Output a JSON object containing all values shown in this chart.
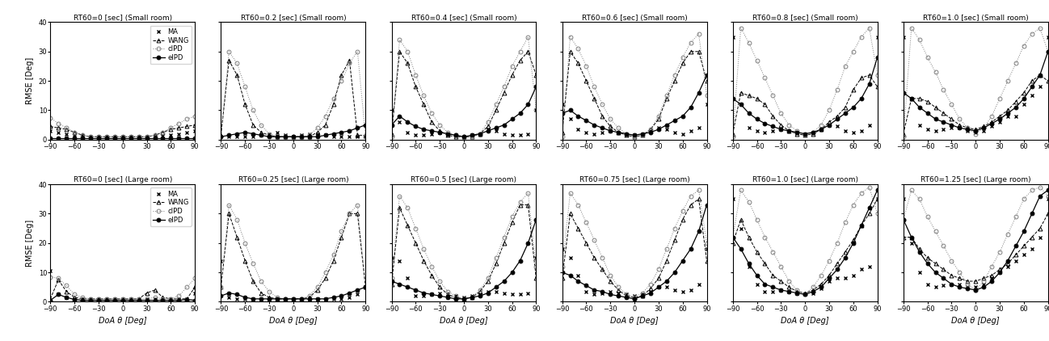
{
  "theta": [
    -90,
    -80,
    -70,
    -60,
    -50,
    -40,
    -30,
    -20,
    -10,
    0,
    10,
    20,
    30,
    40,
    50,
    60,
    70,
    80,
    90
  ],
  "row1_titles": [
    "RT60=0 [sec] (Small room)",
    "RT60=0.2 [sec] (Small room)",
    "RT60=0.4 [sec] (Small room)",
    "RT60=0.6 [sec] (Small room)",
    "RT60=0.8 [sec] (Small room)",
    "RT60=1.0 [sec] (Small room)"
  ],
  "row2_titles": [
    "RT60=0 [sec] (Large room)",
    "RT60=0.25 [sec] (Large room)",
    "RT60=0.5 [sec] (Large room)",
    "RT60=0.75 [sec] (Large room)",
    "RT60=1.0 [sec] (Large room)",
    "RT60=1.25 [sec] (Large room)"
  ],
  "small_room": {
    "MA": [
      [
        3.0,
        2.5,
        2.0,
        1.5,
        1.2,
        1.0,
        1.0,
        1.0,
        1.0,
        1.0,
        1.0,
        1.0,
        1.0,
        1.0,
        1.2,
        1.5,
        2.0,
        2.5,
        3.0
      ],
      [
        1.0,
        1.0,
        1.0,
        1.0,
        1.0,
        1.5,
        2.0,
        2.5,
        1.5,
        1.0,
        1.5,
        2.0,
        2.0,
        1.5,
        1.0,
        1.0,
        1.0,
        1.0,
        1.0
      ],
      [
        10.0,
        6.0,
        2.5,
        1.5,
        1.5,
        2.0,
        2.5,
        2.0,
        1.5,
        1.0,
        1.5,
        2.0,
        3.5,
        3.0,
        2.0,
        1.5,
        1.5,
        2.0,
        10.0
      ],
      [
        12.0,
        7.0,
        3.5,
        2.5,
        2.0,
        2.5,
        3.0,
        2.5,
        2.0,
        1.5,
        2.0,
        3.0,
        4.0,
        3.5,
        2.5,
        2.0,
        3.0,
        4.0,
        12.0
      ],
      [
        35.0,
        12.0,
        4.0,
        3.0,
        2.5,
        3.0,
        3.5,
        3.0,
        2.5,
        2.0,
        2.5,
        3.5,
        5.0,
        4.5,
        3.0,
        2.5,
        3.0,
        5.0,
        35.0
      ],
      [
        35.0,
        14.0,
        5.0,
        3.5,
        3.0,
        3.5,
        4.0,
        4.0,
        3.0,
        2.5,
        3.0,
        4.5,
        6.0,
        8.0,
        8.0,
        12.0,
        15.0,
        18.0,
        35.0
      ]
    ],
    "WANG": [
      [
        4.5,
        4.0,
        3.5,
        2.5,
        1.5,
        1.0,
        1.0,
        1.0,
        1.0,
        1.0,
        1.0,
        1.0,
        1.0,
        1.5,
        2.5,
        3.5,
        4.0,
        4.5,
        5.0
      ],
      [
        1.5,
        27.0,
        22.0,
        12.0,
        5.0,
        2.5,
        1.5,
        1.0,
        1.0,
        1.0,
        1.0,
        1.0,
        2.5,
        5.0,
        12.0,
        22.0,
        27.0,
        1.5,
        1.5
      ],
      [
        2.0,
        30.0,
        26.0,
        18.0,
        12.0,
        6.0,
        3.0,
        1.5,
        1.0,
        1.0,
        1.0,
        2.0,
        4.5,
        10.0,
        16.0,
        22.0,
        27.0,
        30.0,
        22.0
      ],
      [
        2.5,
        30.0,
        26.0,
        20.0,
        14.0,
        8.0,
        4.5,
        2.5,
        1.5,
        1.0,
        1.5,
        3.5,
        7.0,
        14.0,
        20.0,
        26.0,
        30.0,
        30.0,
        20.0
      ],
      [
        2.0,
        16.0,
        15.0,
        14.0,
        12.0,
        8.0,
        5.0,
        3.0,
        2.0,
        1.5,
        2.0,
        3.5,
        6.0,
        8.0,
        11.0,
        17.0,
        21.0,
        22.0,
        18.0
      ],
      [
        2.0,
        14.0,
        14.0,
        13.0,
        11.0,
        9.0,
        7.0,
        5.0,
        4.0,
        3.5,
        4.5,
        6.0,
        8.0,
        10.0,
        13.0,
        16.0,
        20.0,
        22.0,
        20.0
      ]
    ],
    "cIPD": [
      [
        7.5,
        5.5,
        4.0,
        2.5,
        1.5,
        1.0,
        1.0,
        1.0,
        1.0,
        1.0,
        1.0,
        1.0,
        1.0,
        1.5,
        2.5,
        4.0,
        5.5,
        7.0,
        8.0
      ],
      [
        1.0,
        30.0,
        26.0,
        18.0,
        10.0,
        5.0,
        2.0,
        1.0,
        1.0,
        1.0,
        1.0,
        1.5,
        4.0,
        8.0,
        14.0,
        20.0,
        26.0,
        30.0,
        1.0
      ],
      [
        1.0,
        34.0,
        30.0,
        22.0,
        15.0,
        9.0,
        5.0,
        2.5,
        1.5,
        1.0,
        1.0,
        2.0,
        6.0,
        12.0,
        18.0,
        25.0,
        30.0,
        35.0,
        10.0
      ],
      [
        1.0,
        35.0,
        31.0,
        25.0,
        18.0,
        12.0,
        7.0,
        4.0,
        2.0,
        1.0,
        1.5,
        3.5,
        8.0,
        15.0,
        22.0,
        28.0,
        33.0,
        36.0,
        15.0
      ],
      [
        1.0,
        38.0,
        33.0,
        27.0,
        21.0,
        15.0,
        9.0,
        5.0,
        3.0,
        1.5,
        2.5,
        5.0,
        10.0,
        17.0,
        25.0,
        30.0,
        35.0,
        38.0,
        22.0
      ],
      [
        1.0,
        38.0,
        34.0,
        28.0,
        23.0,
        17.0,
        12.0,
        7.0,
        4.0,
        2.0,
        4.0,
        8.0,
        14.0,
        20.0,
        26.0,
        32.0,
        36.0,
        38.0,
        30.0
      ]
    ],
    "eIPD": [
      [
        0.5,
        0.5,
        0.5,
        0.5,
        0.5,
        0.5,
        0.5,
        0.5,
        0.5,
        0.5,
        0.5,
        0.5,
        0.5,
        0.5,
        0.5,
        0.5,
        0.5,
        0.5,
        0.5
      ],
      [
        1.0,
        1.5,
        2.0,
        2.5,
        2.0,
        1.5,
        1.0,
        1.0,
        1.0,
        1.0,
        1.0,
        1.0,
        1.0,
        1.5,
        2.0,
        2.5,
        3.0,
        4.0,
        5.0
      ],
      [
        5.0,
        8.0,
        6.0,
        4.5,
        3.5,
        3.0,
        2.5,
        2.0,
        1.5,
        1.0,
        1.5,
        2.0,
        3.0,
        4.0,
        5.0,
        7.0,
        9.0,
        12.0,
        18.0
      ],
      [
        9.0,
        10.0,
        8.0,
        6.5,
        5.0,
        4.0,
        3.0,
        2.5,
        2.0,
        1.5,
        2.0,
        2.5,
        3.5,
        5.0,
        6.5,
        8.0,
        11.0,
        16.0,
        22.0
      ],
      [
        14.0,
        12.0,
        9.0,
        7.0,
        5.5,
        4.5,
        3.5,
        3.0,
        2.5,
        2.0,
        2.5,
        3.5,
        5.0,
        7.0,
        9.0,
        11.0,
        14.0,
        19.0,
        28.0
      ],
      [
        16.0,
        14.0,
        11.0,
        9.0,
        7.0,
        6.0,
        5.0,
        4.0,
        3.5,
        3.0,
        4.0,
        5.5,
        7.0,
        9.0,
        11.0,
        14.0,
        18.0,
        22.0,
        30.0
      ]
    ]
  },
  "large_room": {
    "MA": [
      [
        10.5,
        2.5,
        1.5,
        1.0,
        1.0,
        1.0,
        1.0,
        1.0,
        1.0,
        1.0,
        1.0,
        1.0,
        1.0,
        1.0,
        1.0,
        1.0,
        1.0,
        1.0,
        3.0
      ],
      [
        14.0,
        1.5,
        1.0,
        1.0,
        1.0,
        1.0,
        1.0,
        1.0,
        1.0,
        1.0,
        1.0,
        1.0,
        1.0,
        1.0,
        1.0,
        1.0,
        1.5,
        2.5,
        5.0
      ],
      [
        15.0,
        14.0,
        8.0,
        2.0,
        2.0,
        2.5,
        3.0,
        2.5,
        2.0,
        1.5,
        2.0,
        2.5,
        3.5,
        3.5,
        3.0,
        2.5,
        2.5,
        3.0,
        15.0
      ],
      [
        18.0,
        15.0,
        9.0,
        3.5,
        2.5,
        3.0,
        3.5,
        3.0,
        2.5,
        2.0,
        2.5,
        3.5,
        5.0,
        5.0,
        4.0,
        3.5,
        4.0,
        6.0,
        18.0
      ],
      [
        35.0,
        25.0,
        12.0,
        6.0,
        3.5,
        3.5,
        4.0,
        3.5,
        3.0,
        2.5,
        3.0,
        4.5,
        7.0,
        8.0,
        8.0,
        9.0,
        11.0,
        12.0,
        35.0
      ],
      [
        35.0,
        20.0,
        10.0,
        6.0,
        5.0,
        5.5,
        6.0,
        6.0,
        5.0,
        5.0,
        6.0,
        8.0,
        10.0,
        12.0,
        14.0,
        16.0,
        18.0,
        22.0,
        35.0
      ]
    ],
    "WANG": [
      [
        1.0,
        7.5,
        3.5,
        1.5,
        1.0,
        1.0,
        1.0,
        1.0,
        1.0,
        1.0,
        1.0,
        1.0,
        3.0,
        4.0,
        1.5,
        1.0,
        1.0,
        1.0,
        5.0
      ],
      [
        5.0,
        30.0,
        22.0,
        14.0,
        7.0,
        3.0,
        1.5,
        1.0,
        1.0,
        1.0,
        1.0,
        1.5,
        4.0,
        8.0,
        14.0,
        22.0,
        30.0,
        30.0,
        5.0
      ],
      [
        6.0,
        32.0,
        26.0,
        20.0,
        14.0,
        9.0,
        5.0,
        2.5,
        1.5,
        1.0,
        1.5,
        3.5,
        7.0,
        13.0,
        20.0,
        27.0,
        33.0,
        33.0,
        8.0
      ],
      [
        8.0,
        30.0,
        25.0,
        20.0,
        15.0,
        11.0,
        7.0,
        4.0,
        2.0,
        1.5,
        2.0,
        4.5,
        8.0,
        14.0,
        21.0,
        28.0,
        33.0,
        35.0,
        14.0
      ],
      [
        20.0,
        28.0,
        22.0,
        17.0,
        13.0,
        9.0,
        7.0,
        5.0,
        3.5,
        3.0,
        4.0,
        6.0,
        9.0,
        13.0,
        17.0,
        21.0,
        26.0,
        30.0,
        35.0
      ],
      [
        22.0,
        22.0,
        18.0,
        15.0,
        13.0,
        11.0,
        9.0,
        8.0,
        7.0,
        7.0,
        8.0,
        9.0,
        11.0,
        13.0,
        16.0,
        19.0,
        22.0,
        25.0,
        30.0
      ]
    ],
    "cIPD": [
      [
        8.5,
        8.0,
        5.5,
        2.5,
        1.5,
        1.0,
        1.0,
        1.0,
        1.0,
        1.0,
        1.0,
        1.0,
        1.0,
        1.5,
        1.0,
        1.0,
        2.0,
        5.0,
        8.0
      ],
      [
        5.0,
        33.0,
        28.0,
        20.0,
        13.0,
        7.0,
        3.5,
        1.5,
        1.0,
        1.0,
        1.0,
        2.0,
        5.0,
        10.0,
        16.0,
        24.0,
        30.0,
        33.0,
        5.0
      ],
      [
        8.0,
        36.0,
        32.0,
        25.0,
        18.0,
        12.0,
        7.0,
        3.5,
        2.0,
        1.0,
        1.5,
        4.0,
        8.0,
        15.0,
        22.0,
        29.0,
        34.0,
        37.0,
        12.0
      ],
      [
        12.0,
        37.0,
        33.0,
        27.0,
        21.0,
        15.0,
        9.0,
        5.0,
        2.5,
        1.5,
        3.0,
        6.0,
        11.0,
        18.0,
        25.0,
        31.0,
        36.0,
        38.0,
        20.0
      ],
      [
        22.0,
        38.0,
        34.0,
        28.0,
        22.0,
        17.0,
        12.0,
        7.0,
        4.0,
        2.5,
        5.0,
        9.0,
        14.0,
        20.0,
        27.0,
        33.0,
        37.0,
        39.0,
        30.0
      ],
      [
        28.0,
        38.0,
        35.0,
        29.0,
        24.0,
        19.0,
        14.0,
        10.0,
        6.0,
        4.0,
        7.0,
        12.0,
        17.0,
        23.0,
        29.0,
        35.0,
        38.0,
        39.0,
        36.0
      ]
    ],
    "eIPD": [
      [
        0.5,
        2.5,
        1.5,
        0.8,
        0.5,
        0.5,
        0.5,
        0.5,
        0.5,
        0.5,
        0.5,
        0.5,
        0.5,
        0.5,
        0.5,
        0.5,
        0.5,
        0.8,
        0.5
      ],
      [
        2.0,
        3.0,
        2.5,
        1.5,
        1.0,
        1.0,
        1.0,
        1.0,
        1.0,
        1.0,
        1.0,
        1.0,
        1.0,
        1.0,
        1.5,
        2.0,
        3.0,
        4.0,
        5.0
      ],
      [
        7.0,
        6.0,
        5.0,
        4.0,
        3.0,
        2.5,
        2.0,
        1.5,
        1.0,
        1.0,
        1.5,
        2.0,
        3.0,
        5.0,
        7.0,
        10.0,
        14.0,
        20.0,
        28.0
      ],
      [
        10.0,
        9.0,
        7.0,
        5.5,
        4.0,
        3.5,
        2.5,
        2.0,
        1.5,
        1.0,
        2.0,
        3.0,
        5.0,
        7.0,
        10.0,
        14.0,
        18.0,
        24.0,
        33.0
      ],
      [
        22.0,
        18.0,
        13.0,
        9.0,
        6.0,
        5.0,
        4.0,
        3.5,
        3.0,
        2.5,
        3.5,
        5.0,
        8.0,
        11.0,
        15.0,
        20.0,
        26.0,
        32.0,
        38.0
      ],
      [
        28.0,
        22.0,
        17.0,
        13.0,
        10.0,
        8.0,
        6.0,
        5.0,
        4.5,
        4.0,
        5.0,
        7.0,
        10.0,
        14.0,
        19.0,
        24.0,
        30.0,
        36.0,
        38.0
      ]
    ]
  },
  "ylim": [
    0,
    40
  ],
  "yticks": [
    0,
    10,
    20,
    30,
    40
  ],
  "xlim": [
    -90,
    90
  ],
  "xticks": [
    -90,
    -60,
    -30,
    0,
    30,
    60,
    90
  ],
  "xlabel": "DoA θ [Deg]",
  "ylabel": "RMSE [Deg]"
}
